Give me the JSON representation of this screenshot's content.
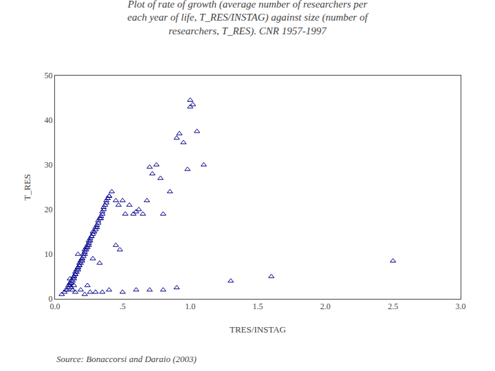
{
  "chart_data": {
    "type": "scatter",
    "title": "Plot of rate of growth (average number of researchers per\neach year of life, T_RES/INSTAG) against size (number of\nresearchers, T_RES). CNR 1957-1997",
    "xlabel": "TRES/INSTAG",
    "ylabel": "T_RES",
    "annotations": [
      "Source: Bonaccorsi and Daraio (2003)"
    ],
    "xlim": [
      0.0,
      3.0
    ],
    "ylim": [
      0,
      50
    ],
    "xticks": [
      {
        "value": 0.0,
        "label": "0.0"
      },
      {
        "value": 0.5,
        "label": ".5"
      },
      {
        "value": 1.0,
        "label": "1.0"
      },
      {
        "value": 1.5,
        "label": "1.5"
      },
      {
        "value": 2.0,
        "label": "2.0"
      },
      {
        "value": 2.5,
        "label": "2.5"
      },
      {
        "value": 3.0,
        "label": "3.0"
      }
    ],
    "yticks": [
      0,
      10,
      20,
      30,
      40,
      50
    ],
    "grid": false,
    "color": "#00008B",
    "marker": "triangle",
    "x": [
      0.05,
      0.07,
      0.08,
      0.09,
      0.1,
      0.1,
      0.11,
      0.11,
      0.12,
      0.12,
      0.13,
      0.13,
      0.14,
      0.14,
      0.14,
      0.15,
      0.15,
      0.15,
      0.16,
      0.16,
      0.17,
      0.17,
      0.17,
      0.18,
      0.18,
      0.18,
      0.19,
      0.19,
      0.2,
      0.2,
      0.2,
      0.21,
      0.21,
      0.22,
      0.22,
      0.22,
      0.23,
      0.23,
      0.24,
      0.24,
      0.25,
      0.25,
      0.25,
      0.26,
      0.26,
      0.27,
      0.27,
      0.28,
      0.28,
      0.29,
      0.3,
      0.3,
      0.31,
      0.31,
      0.32,
      0.32,
      0.33,
      0.34,
      0.34,
      0.35,
      0.35,
      0.36,
      0.36,
      0.37,
      0.38,
      0.38,
      0.39,
      0.4,
      0.4,
      0.42,
      0.45,
      0.47,
      0.5,
      0.52,
      0.55,
      0.58,
      0.6,
      0.62,
      0.65,
      0.68,
      0.7,
      0.72,
      0.75,
      0.78,
      0.8,
      0.85,
      0.9,
      0.92,
      0.95,
      0.98,
      1.0,
      1.0,
      1.02,
      1.05,
      1.1,
      1.3,
      1.6,
      2.5,
      0.45,
      0.48,
      0.33,
      0.28,
      0.24,
      0.19,
      0.17,
      0.15,
      0.14,
      0.13,
      0.12,
      0.11,
      0.22,
      0.26,
      0.3,
      0.35,
      0.4,
      0.5,
      0.6,
      0.7,
      0.8,
      0.9
    ],
    "values": [
      1.0,
      1.5,
      2.0,
      2.0,
      2.5,
      3.0,
      3.0,
      3.5,
      3.5,
      4.0,
      4.0,
      4.5,
      4.5,
      5.0,
      5.0,
      5.5,
      5.5,
      6.0,
      6.0,
      6.5,
      6.5,
      7.0,
      7.0,
      7.5,
      7.5,
      8.0,
      8.0,
      8.5,
      8.5,
      9.0,
      9.0,
      9.5,
      10.0,
      10.0,
      10.5,
      11.0,
      11.0,
      11.5,
      11.5,
      12.0,
      12.0,
      12.5,
      13.0,
      13.0,
      13.5,
      14.0,
      14.0,
      14.5,
      15.0,
      15.0,
      15.5,
      16.0,
      16.0,
      16.5,
      17.0,
      17.5,
      18.0,
      18.0,
      18.5,
      19.0,
      19.5,
      20.0,
      20.5,
      21.0,
      21.5,
      22.0,
      22.5,
      23.0,
      23.0,
      24.0,
      22.0,
      21.0,
      22.0,
      19.0,
      21.0,
      19.0,
      19.5,
      20.0,
      19.0,
      22.0,
      29.5,
      28.0,
      30.0,
      27.0,
      19.0,
      24.0,
      36.0,
      37.0,
      35.0,
      29.0,
      44.5,
      43.0,
      43.5,
      37.5,
      30.0,
      4.0,
      5.0,
      8.5,
      12.0,
      11.0,
      8.0,
      9.0,
      3.0,
      2.0,
      10.0,
      1.5,
      3.0,
      2.0,
      2.5,
      4.5,
      1.0,
      1.5,
      1.5,
      1.5,
      2.0,
      1.5,
      2.0,
      2.0,
      2.0,
      2.5
    ]
  }
}
